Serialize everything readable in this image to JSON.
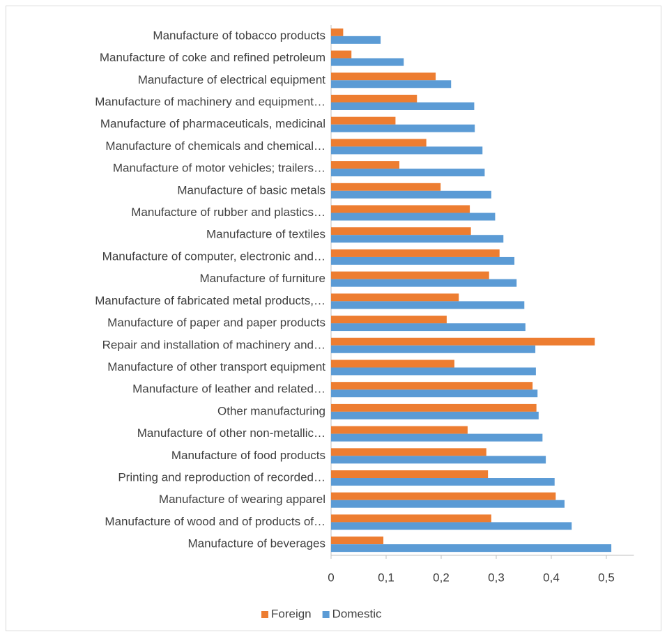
{
  "chart_data": {
    "type": "bar",
    "orientation": "horizontal",
    "categories": [
      "Manufacture of tobacco products",
      "Manufacture of coke and refined petroleum",
      "Manufacture of electrical equipment",
      "Manufacture of machinery and equipment…",
      "Manufacture of pharmaceuticals, medicinal",
      "Manufacture of chemicals and chemical…",
      "Manufacture of motor vehicles; trailers…",
      "Manufacture of basic metals",
      "Manufacture of rubber and plastics…",
      "Manufacture of textiles",
      "Manufacture of computer, electronic and…",
      "Manufacture of furniture",
      "Manufacture of fabricated metal products,…",
      "Manufacture of paper and paper products",
      "Repair and installation of machinery and…",
      "Manufacture of other transport equipment",
      "Manufacture of leather and related…",
      "Other manufacturing",
      "Manufacture of other non-metallic…",
      "Manufacture of food products",
      "Printing and reproduction of recorded…",
      "Manufacture of wearing apparel",
      "Manufacture of wood and of products of…",
      "Manufacture of beverages"
    ],
    "series": [
      {
        "name": "Foreign",
        "color": "#ed7d31",
        "values": [
          0.022,
          0.037,
          0.19,
          0.156,
          0.117,
          0.173,
          0.124,
          0.199,
          0.252,
          0.254,
          0.306,
          0.287,
          0.232,
          0.21,
          0.479,
          0.224,
          0.366,
          0.373,
          0.248,
          0.282,
          0.285,
          0.408,
          0.291,
          0.095
        ]
      },
      {
        "name": "Domestic",
        "color": "#5b9bd5",
        "values": [
          0.09,
          0.132,
          0.218,
          0.26,
          0.261,
          0.275,
          0.279,
          0.291,
          0.298,
          0.313,
          0.333,
          0.337,
          0.351,
          0.353,
          0.371,
          0.372,
          0.375,
          0.377,
          0.384,
          0.39,
          0.406,
          0.424,
          0.437,
          0.509
        ]
      }
    ],
    "xlim": [
      0,
      0.55
    ],
    "xticks": [
      0,
      {
        "value": 0.1,
        "label": "0,1"
      },
      {
        "value": 0.2,
        "label": "0,2"
      },
      {
        "value": 0.3,
        "label": "0,3"
      },
      {
        "value": 0.4,
        "label": "0,4"
      },
      {
        "value": 0.5,
        "label": "0,5"
      }
    ],
    "legend": "bottom"
  }
}
